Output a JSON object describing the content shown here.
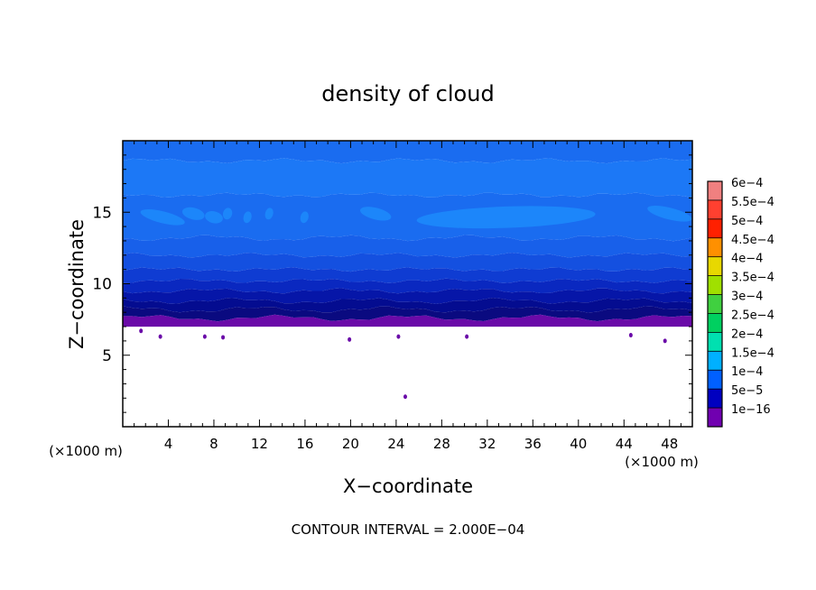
{
  "chart_data": {
    "type": "contour",
    "title": "density of cloud",
    "xlabel": "X−coordinate",
    "ylabel": "Z−coordinate",
    "x_unit_left": "(×1000 m)",
    "x_unit_right": "(×1000 m)",
    "footer": "CONTOUR INTERVAL = 2.000E−04",
    "xlim": [
      0,
      50
    ],
    "ylim": [
      0,
      20
    ],
    "x_ticks": [
      "4",
      "8",
      "12",
      "16",
      "20",
      "24",
      "28",
      "32",
      "36",
      "40",
      "44",
      "48"
    ],
    "x_tick_values": [
      4,
      8,
      12,
      16,
      20,
      24,
      28,
      32,
      36,
      40,
      44,
      48
    ],
    "y_ticks": [
      "5",
      "10",
      "15"
    ],
    "y_tick_values": [
      5,
      10,
      15
    ],
    "cloud_base_z": 7.0,
    "colorbar": {
      "labels": [
        "6e−4",
        "5.5e−4",
        "5e−4",
        "4.5e−4",
        "4e−4",
        "3.5e−4",
        "3e−4",
        "2.5e−4",
        "2e−4",
        "1.5e−4",
        "1e−4",
        "5e−5",
        "1e−16"
      ],
      "colors": [
        "#f08080",
        "#ff4030",
        "#ff2000",
        "#ff9000",
        "#e8d800",
        "#a0e000",
        "#40d040",
        "#00d060",
        "#00e0b0",
        "#00b0ff",
        "#0060ff",
        "#0000c0",
        "#7000b0"
      ]
    },
    "bands": [
      {
        "z_top": 20.0,
        "z_bottom": 18.6,
        "value": 0.000135,
        "color": "#1a6cf0"
      },
      {
        "z_top": 18.6,
        "z_bottom": 16.2,
        "value": 0.00013,
        "color": "#1c78f6"
      },
      {
        "z_top": 16.2,
        "z_bottom": 13.2,
        "value": 0.000125,
        "color": "#1a6cf0"
      },
      {
        "z_top": 13.2,
        "z_bottom": 12.0,
        "value": 0.000115,
        "color": "#1860ea"
      },
      {
        "z_top": 12.0,
        "z_bottom": 11.0,
        "value": 0.000105,
        "color": "#1450e0"
      },
      {
        "z_top": 11.0,
        "z_bottom": 10.2,
        "value": 9e-05,
        "color": "#0f3cd2"
      },
      {
        "z_top": 10.2,
        "z_bottom": 9.5,
        "value": 7.5e-05,
        "color": "#0a28c0"
      },
      {
        "z_top": 9.5,
        "z_bottom": 8.8,
        "value": 6e-05,
        "color": "#0616a8"
      },
      {
        "z_top": 8.8,
        "z_bottom": 8.2,
        "value": 5e-05,
        "color": "#040c90"
      },
      {
        "z_top": 8.2,
        "z_bottom": 7.6,
        "value": 3e-05,
        "color": "#0a0a80"
      },
      {
        "z_top": 7.6,
        "z_bottom": 7.0,
        "value": 1e-16,
        "color": "#6a0aa8"
      }
    ],
    "patches_z_band": [
      14.0,
      15.5
    ],
    "patches_color": "#1c86fa",
    "grid": false
  }
}
